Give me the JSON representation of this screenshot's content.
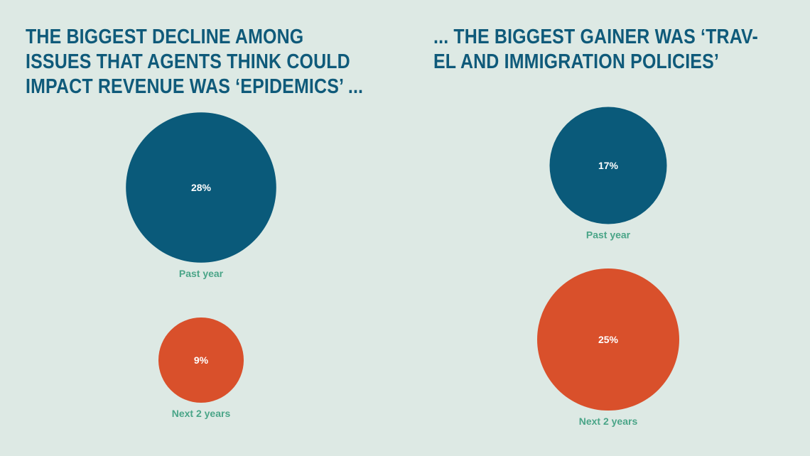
{
  "headlines": {
    "left": [
      "THE BIGGEST DECLINE AMONG",
      "ISSUES THAT AGENTS THINK COULD",
      "IMPACT REVENUE WAS ‘EPIDEMICS’ ..."
    ],
    "right": [
      "... THE BIGGEST GAINER WAS ‘TRAV-",
      "EL AND IMMIGRATION POLICIES’"
    ]
  },
  "colors": {
    "background": "#dde9e4",
    "headline": "#0f5a7a",
    "past_year": "#0a5a7a",
    "next_2_years": "#d9502b",
    "label": "#4aa588",
    "value_text": "#ffffff"
  },
  "chart_data": [
    {
      "type": "bubble",
      "title": "Epidemics",
      "unit": "%",
      "points": [
        {
          "category": "Past year",
          "value": 28,
          "label": "28%",
          "color_key": "past_year"
        },
        {
          "category": "Next 2 years",
          "value": 9,
          "label": "9%",
          "color_key": "next_2_years"
        }
      ]
    },
    {
      "type": "bubble",
      "title": "Travel and immigration policies",
      "unit": "%",
      "points": [
        {
          "category": "Past year",
          "value": 17,
          "label": "17%",
          "color_key": "past_year"
        },
        {
          "category": "Next 2 years",
          "value": 25,
          "label": "25%",
          "color_key": "next_2_years"
        }
      ]
    }
  ]
}
